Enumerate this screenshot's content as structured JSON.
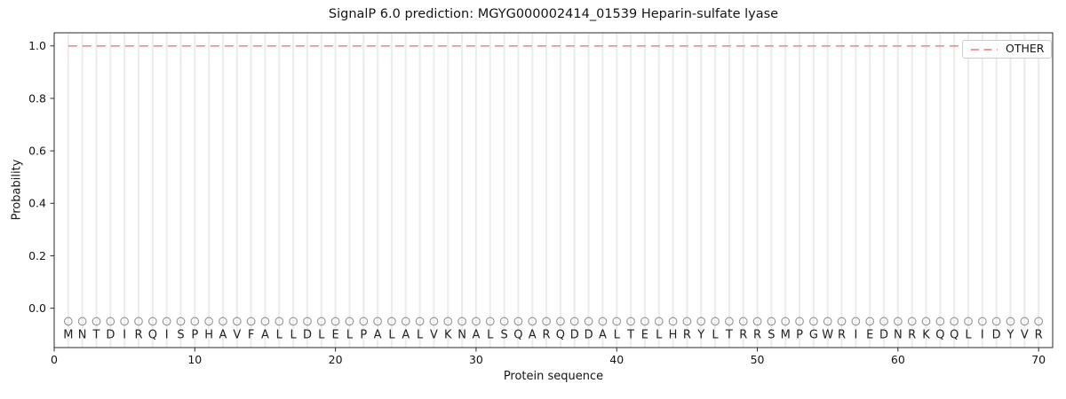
{
  "chart_data": {
    "type": "line",
    "title": "SignalP 6.0 prediction: MGYG000002414_01539 Heparin-sulfate lyase",
    "xlabel": "Protein sequence",
    "ylabel": "Probability",
    "xlim": [
      0,
      71
    ],
    "ylim": [
      -0.15,
      1.05
    ],
    "x_ticks": [
      0,
      10,
      20,
      30,
      40,
      50,
      60,
      70
    ],
    "y_ticks": [
      0.0,
      0.2,
      0.4,
      0.6,
      0.8,
      1.0
    ],
    "grid": {
      "vertical_line_per_residue": true,
      "color": "#ededed"
    },
    "legend": {
      "position": "upper right",
      "entries": [
        {
          "label": "OTHER",
          "color": "#f28a8a",
          "linestyle": "dashed"
        }
      ]
    },
    "series": [
      {
        "name": "OTHER",
        "color": "#f28a8a",
        "linestyle": "dashed",
        "x_start": 1,
        "x_end": 70,
        "constant_value": 1.0
      }
    ],
    "sequence": "MNTDIRQISPHAVFALLDLELPALALVKNALSQARQDDALTELHRYLTRRSMPGWRIEDNRKQQLIDYVR",
    "sequence_marker": {
      "symbol": "circle",
      "y": -0.05,
      "color": "#9a9a9a"
    },
    "sequence_label_y": -0.1,
    "axis_color": "#2a2a2a",
    "text_color": "#151515"
  }
}
